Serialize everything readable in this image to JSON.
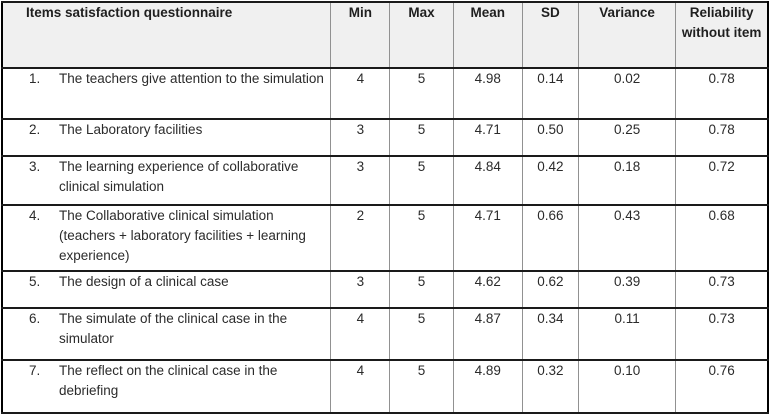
{
  "table": {
    "title_column_label": "Items satisfaction questionnaire",
    "columns": {
      "min": "Min",
      "max": "Max",
      "mean": "Mean",
      "sd": "SD",
      "variance": "Variance",
      "reliability": "Reliability without item"
    },
    "rows": [
      {
        "num": "1.",
        "item": "The teachers give attention to the simulation",
        "min": "4",
        "max": "5",
        "mean": "4.98",
        "sd": "0.14",
        "variance": "0.02",
        "reliability": "0.78"
      },
      {
        "num": "2.",
        "item": "The Laboratory facilities",
        "min": "3",
        "max": "5",
        "mean": "4.71",
        "sd": "0.50",
        "variance": "0.25",
        "reliability": "0.78"
      },
      {
        "num": "3.",
        "item": "The learning experience of collaborative clinical simulation",
        "min": "3",
        "max": "5",
        "mean": "4.84",
        "sd": "0.42",
        "variance": "0.18",
        "reliability": "0.72"
      },
      {
        "num": "4.",
        "item": "The Collaborative clinical simulation (teachers + laboratory facilities + learning experience)",
        "min": "2",
        "max": "5",
        "mean": "4.71",
        "sd": "0.66",
        "variance": "0.43",
        "reliability": "0.68"
      },
      {
        "num": "5.",
        "item": "The design of a clinical case",
        "min": "3",
        "max": "5",
        "mean": "4.62",
        "sd": "0.62",
        "variance": "0.39",
        "reliability": "0.73"
      },
      {
        "num": "6.",
        "item": "The simulate of the clinical case in the simulator",
        "min": "4",
        "max": "5",
        "mean": "4.87",
        "sd": "0.34",
        "variance": "0.11",
        "reliability": "0.73"
      },
      {
        "num": "7.",
        "item": "The reflect on the clinical case in the debriefing",
        "min": "4",
        "max": "5",
        "mean": "4.89",
        "sd": "0.32",
        "variance": "0.10",
        "reliability": "0.76"
      }
    ],
    "colors": {
      "header_bg": "#f0f0f0",
      "outer_border": "#000000",
      "horizontal_rule": "#1a1a1a",
      "vertical_rule": "#919191",
      "text": "#2b2b2b"
    }
  }
}
